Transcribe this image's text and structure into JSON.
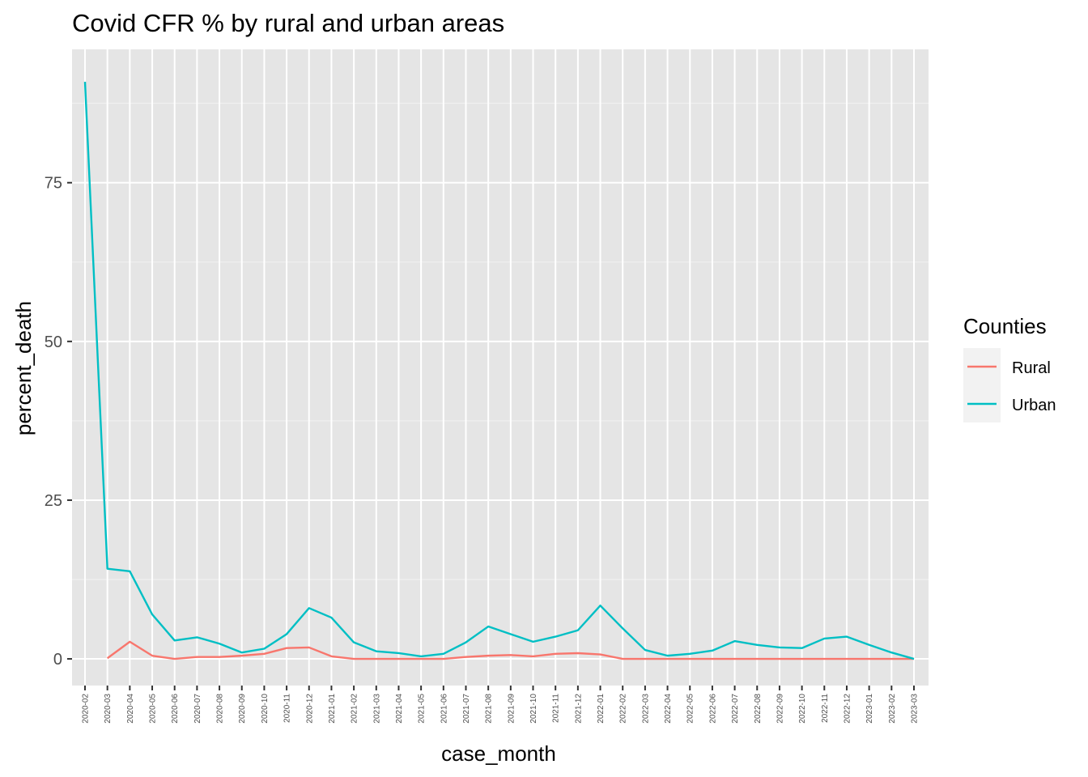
{
  "chart_data": {
    "type": "line",
    "title": "Covid CFR % by rural and urban areas",
    "xlabel": "case_month",
    "ylabel": "percent_death",
    "ylim": [
      -4.2,
      96
    ],
    "yticks": [
      0,
      25,
      50,
      75
    ],
    "grid": true,
    "legend": {
      "title": "Counties",
      "placement": "right"
    },
    "categories": [
      "2020-02",
      "2020-03",
      "2020-04",
      "2020-05",
      "2020-06",
      "2020-07",
      "2020-08",
      "2020-09",
      "2020-10",
      "2020-11",
      "2020-12",
      "2021-01",
      "2021-02",
      "2021-03",
      "2021-04",
      "2021-05",
      "2021-06",
      "2021-07",
      "2021-08",
      "2021-09",
      "2021-10",
      "2021-11",
      "2021-12",
      "2022-01",
      "2022-02",
      "2022-03",
      "2022-04",
      "2022-05",
      "2022-06",
      "2022-07",
      "2022-08",
      "2022-09",
      "2022-10",
      "2022-11",
      "2022-12",
      "2023-01",
      "2023-02",
      "2023-03"
    ],
    "series": [
      {
        "name": "Rural",
        "color": "#F8766D",
        "values": [
          null,
          0.1,
          2.7,
          0.5,
          0.0,
          0.3,
          0.3,
          0.5,
          0.8,
          1.7,
          1.8,
          0.4,
          0.0,
          0.0,
          0.0,
          0.0,
          0.0,
          0.3,
          0.5,
          0.6,
          0.4,
          0.8,
          0.9,
          0.7,
          0.0,
          0.0,
          0.0,
          0.0,
          0.0,
          0.0,
          0.0,
          0.0,
          0.0,
          0.0,
          0.0,
          0.0,
          0.0,
          0.0
        ]
      },
      {
        "name": "Urban",
        "color": "#00BFC4",
        "values": [
          90.9,
          14.2,
          13.8,
          7.0,
          2.9,
          3.4,
          2.4,
          1.0,
          1.6,
          3.9,
          8.0,
          6.5,
          2.6,
          1.2,
          0.9,
          0.4,
          0.8,
          2.6,
          5.1,
          3.9,
          2.7,
          3.5,
          4.5,
          8.4,
          4.8,
          1.4,
          0.5,
          0.8,
          1.3,
          2.8,
          2.2,
          1.8,
          1.7,
          3.2,
          3.5,
          2.2,
          1.0,
          0.0
        ]
      }
    ]
  }
}
